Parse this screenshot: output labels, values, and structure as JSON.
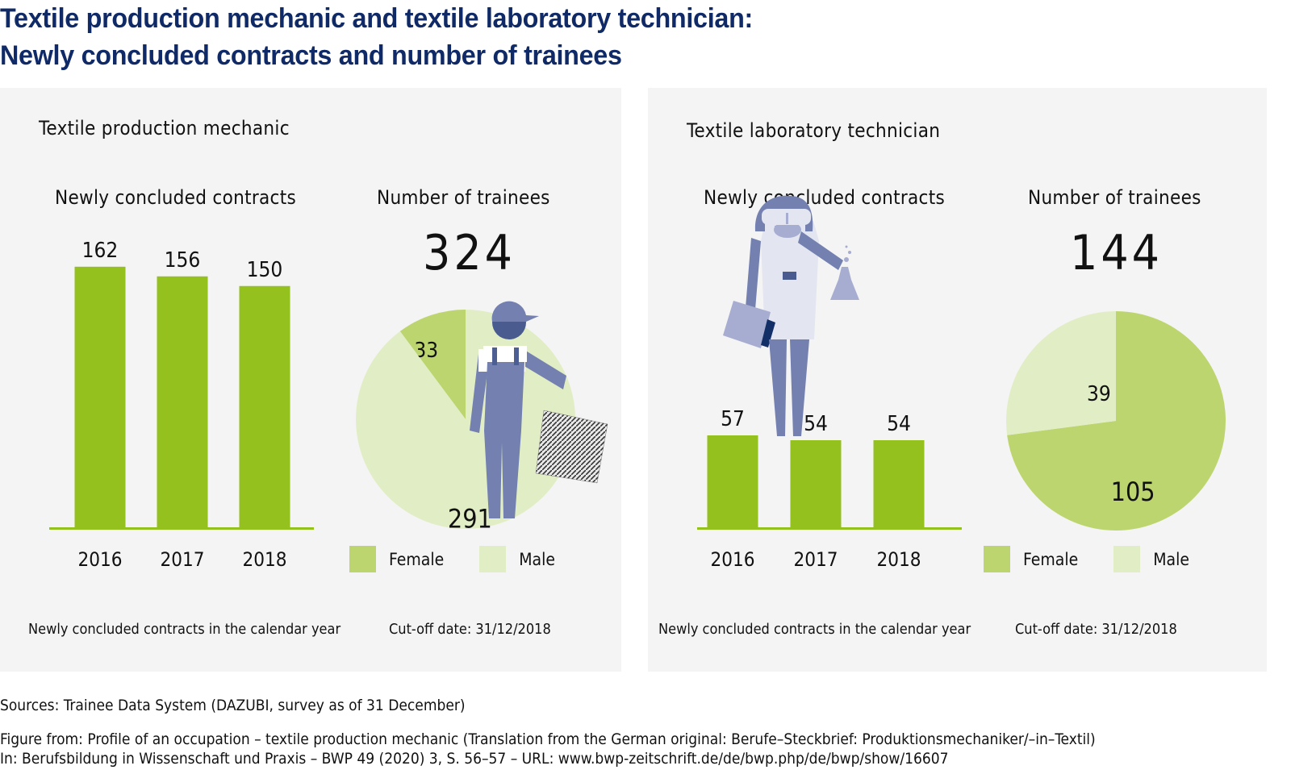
{
  "title": {
    "line1": "Textile production mechanic and textile laboratory technician:",
    "line2": "Newly concluded contracts and number of trainees"
  },
  "colors": {
    "title": "#0f2a66",
    "bar": "#95c11f",
    "female": "#bcd56f",
    "male": "#e1eec5",
    "panel": "#f4f4f4",
    "figure": "#7380b0"
  },
  "chart_data": [
    {
      "type": "bar",
      "panel": "Textile production mechanic",
      "title": "Newly concluded contracts",
      "categories": [
        "2016",
        "2017",
        "2018"
      ],
      "values": [
        162,
        156,
        150
      ],
      "footnote": "Newly concluded contracts in the calendar year"
    },
    {
      "type": "pie",
      "panel": "Textile production mechanic",
      "title": "Number of trainees",
      "total": "324",
      "slices": [
        {
          "label": "Female",
          "value": 33
        },
        {
          "label": "Male",
          "value": 291
        }
      ],
      "legend": [
        "Female",
        "Male"
      ],
      "footnote": "Cut-off date: 31/12/2018"
    },
    {
      "type": "bar",
      "panel": "Textile laboratory technician",
      "title": "Newly concluded contracts",
      "categories": [
        "2016",
        "2017",
        "2018"
      ],
      "values": [
        57,
        54,
        54
      ],
      "footnote": "Newly concluded contracts in the calendar year"
    },
    {
      "type": "pie",
      "panel": "Textile laboratory technician",
      "title": "Number of trainees",
      "total": "144",
      "slices": [
        {
          "label": "Female",
          "value": 105
        },
        {
          "label": "Male",
          "value": 39
        }
      ],
      "legend": [
        "Female",
        "Male"
      ],
      "footnote": "Cut-off date: 31/12/2018"
    }
  ],
  "panels": {
    "left_title": "Textile production mechanic",
    "right_title": "Textile laboratory technician"
  },
  "footer": {
    "sources": "Sources: Trainee Data System (DAZUBI, survey as of 31 December)",
    "figure_from": "Figure from: Profile of an occupation – textile production mechanic (Translation from the German original: Berufe–Steckbrief: Produktionsmechaniker/–in–Textil)",
    "citation": "In: Berufsbildung in Wissenschaft und Praxis – BWP 49 (2020) 3, S. 56–57 – URL: www.bwp-zeitschrift.de/de/bwp.php/de/bwp/show/16607"
  }
}
